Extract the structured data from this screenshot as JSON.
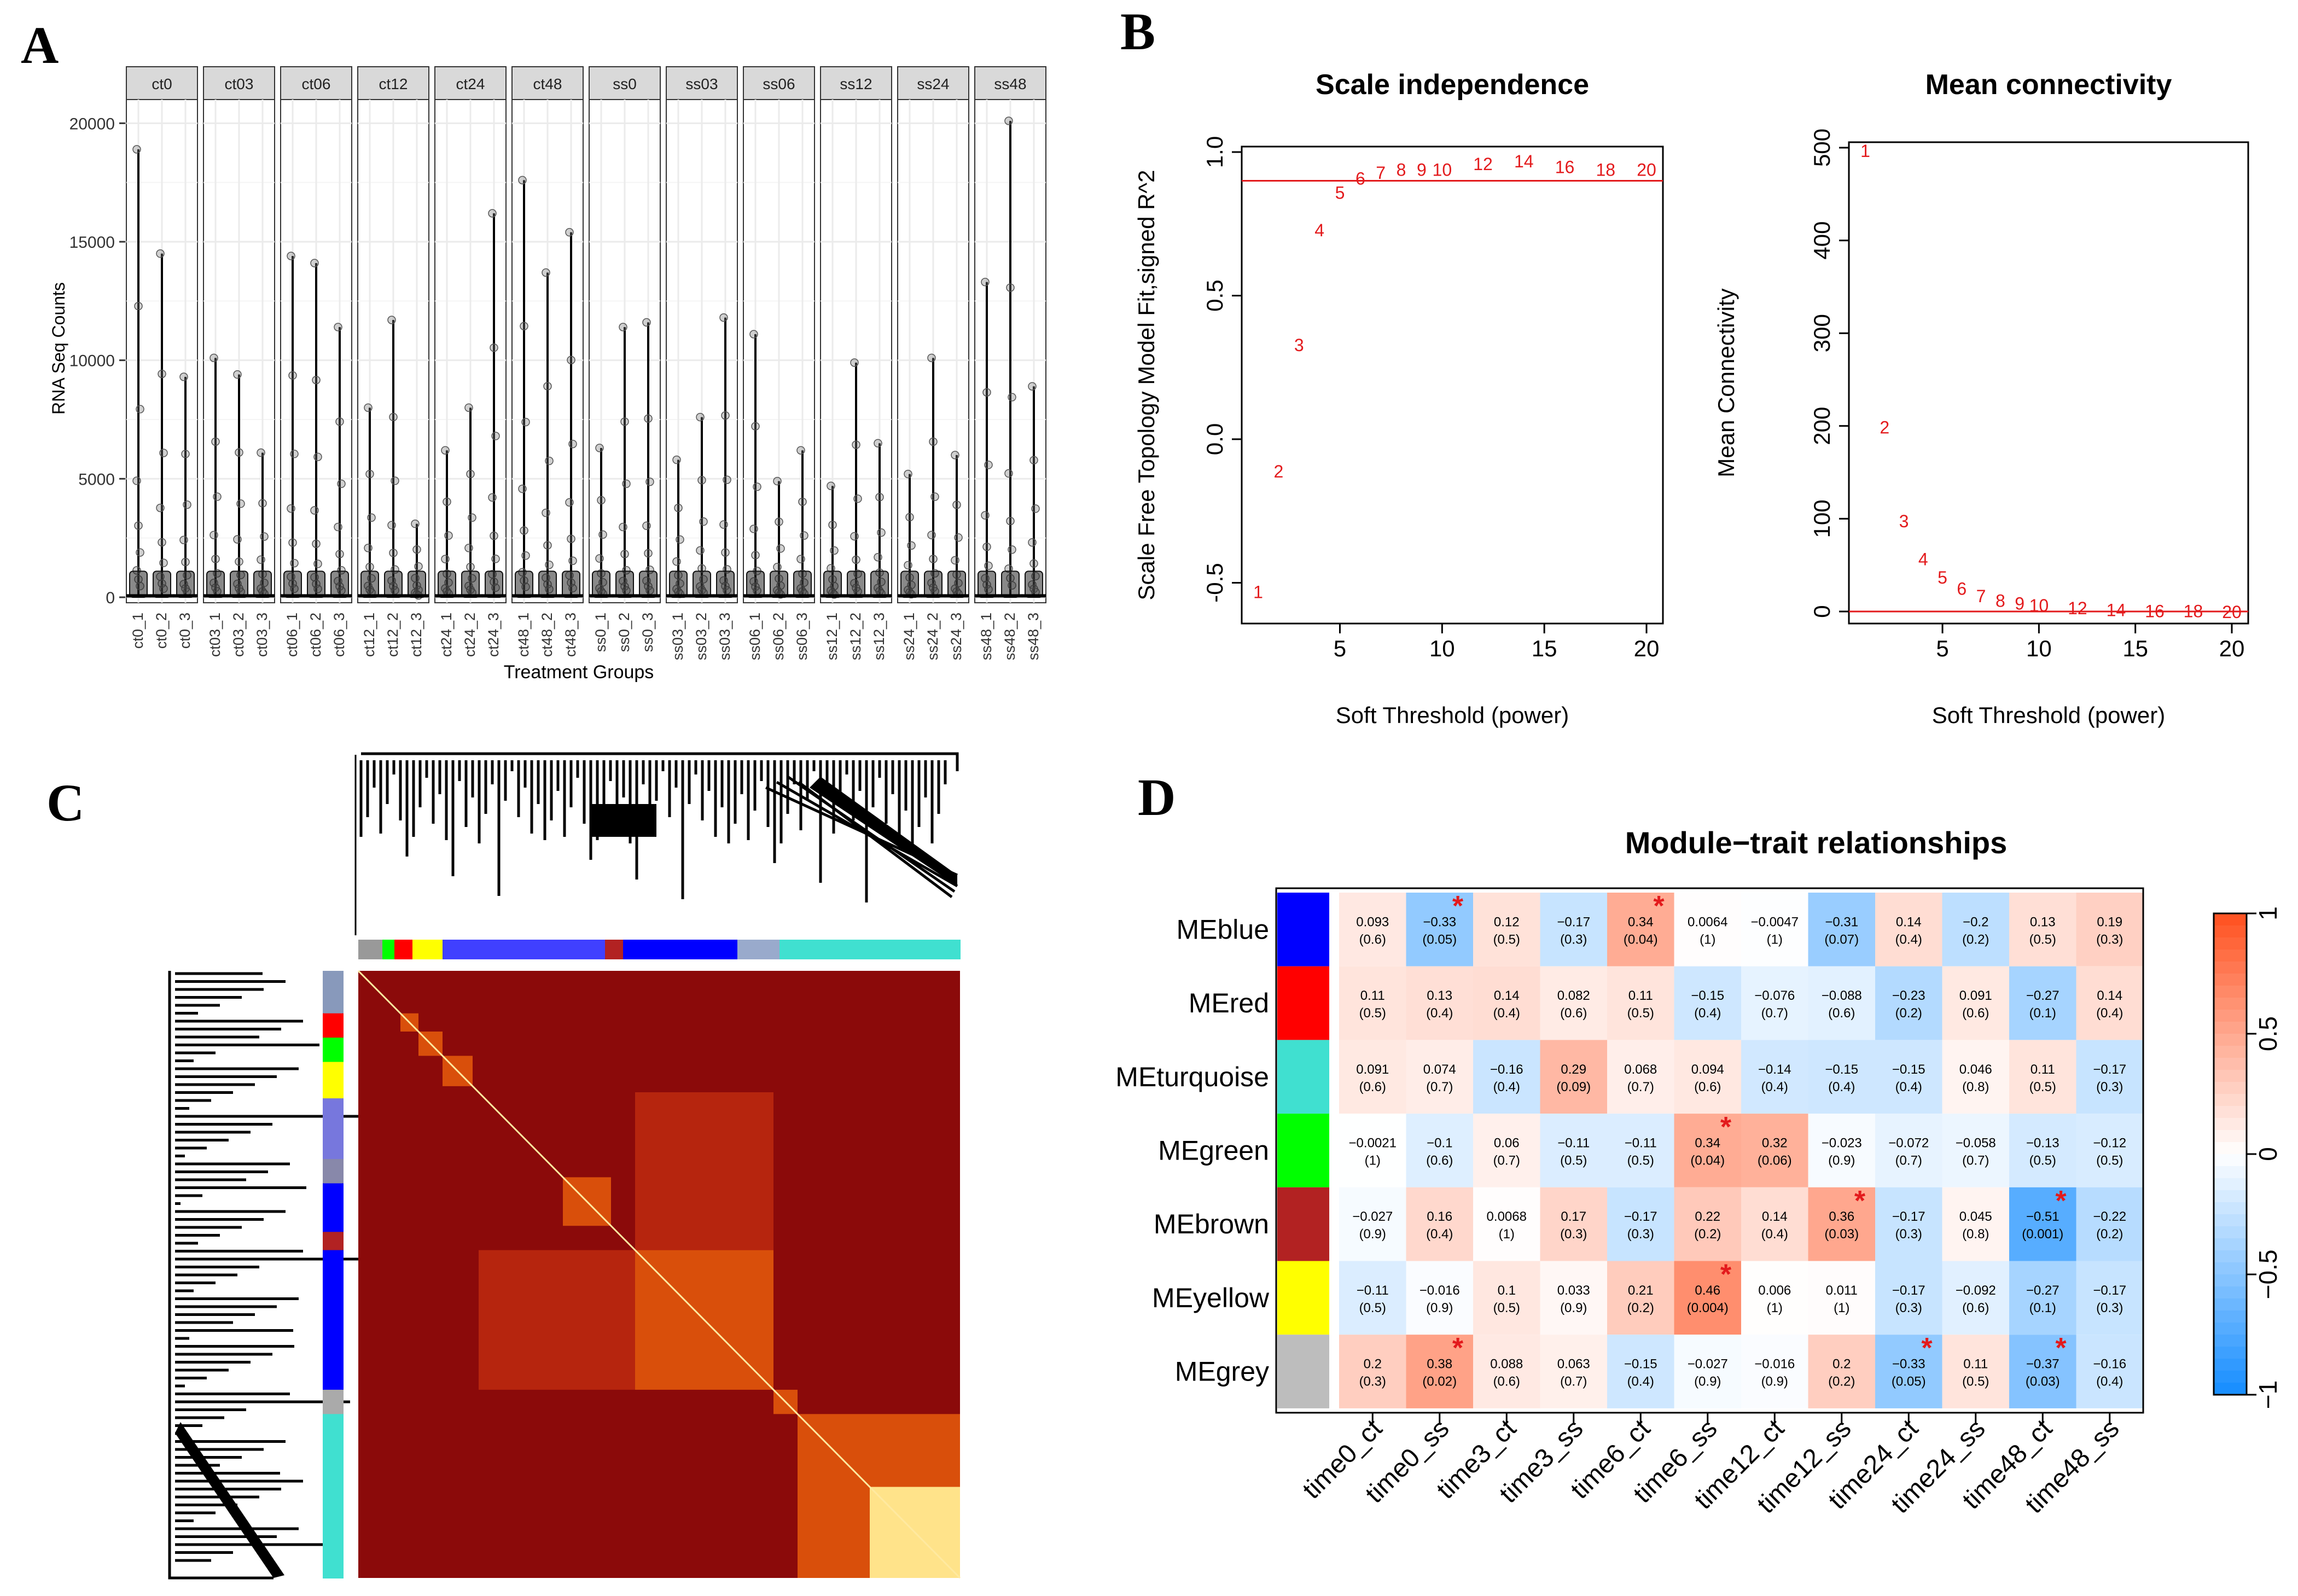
{
  "panels": {
    "a": "A",
    "b": "B",
    "c": "C",
    "d": "D"
  },
  "colors": {
    "accent": "#e31a1c",
    "dark_red": "#8b0000",
    "black": "#000000"
  },
  "chart_data": [
    {
      "id": "A",
      "type": "scatter",
      "subtype": "faceted jitter/strip plot",
      "xlabel": "Treatment Groups",
      "ylabel": "RNA Seq Counts",
      "ylim": [
        0,
        21000
      ],
      "yticks": [
        0,
        5000,
        10000,
        15000,
        20000
      ],
      "facets": [
        {
          "name": "ct0",
          "samples": [
            "ct0_1",
            "ct0_2",
            "ct0_3"
          ],
          "max": [
            18900,
            14500,
            9300
          ]
        },
        {
          "name": "ct03",
          "samples": [
            "ct03_1",
            "ct03_2",
            "ct03_3"
          ],
          "max": [
            10100,
            9400,
            6100
          ]
        },
        {
          "name": "ct06",
          "samples": [
            "ct06_1",
            "ct06_2",
            "ct06_3"
          ],
          "max": [
            14400,
            14100,
            11400
          ]
        },
        {
          "name": "ct12",
          "samples": [
            "ct12_1",
            "ct12_2",
            "ct12_3"
          ],
          "max": [
            8000,
            11700,
            3100
          ]
        },
        {
          "name": "ct24",
          "samples": [
            "ct24_1",
            "ct24_2",
            "ct24_3"
          ],
          "max": [
            6200,
            8000,
            16200
          ]
        },
        {
          "name": "ct48",
          "samples": [
            "ct48_1",
            "ct48_2",
            "ct48_3"
          ],
          "max": [
            17600,
            13700,
            15400
          ]
        },
        {
          "name": "ss0",
          "samples": [
            "ss0_1",
            "ss0_2",
            "ss0_3"
          ],
          "max": [
            6300,
            11400,
            11600
          ]
        },
        {
          "name": "ss03",
          "samples": [
            "ss03_1",
            "ss03_2",
            "ss03_3"
          ],
          "max": [
            5800,
            7600,
            11800
          ]
        },
        {
          "name": "ss06",
          "samples": [
            "ss06_1",
            "ss06_2",
            "ss06_3"
          ],
          "max": [
            11100,
            4900,
            6200
          ]
        },
        {
          "name": "ss12",
          "samples": [
            "ss12_1",
            "ss12_2",
            "ss12_3"
          ],
          "max": [
            4700,
            9900,
            6500
          ]
        },
        {
          "name": "ss24",
          "samples": [
            "ss24_1",
            "ss24_2",
            "ss24_3"
          ],
          "max": [
            5200,
            10100,
            6000
          ]
        },
        {
          "name": "ss48",
          "samples": [
            "ss48_1",
            "ss48_2",
            "ss48_3"
          ],
          "max": [
            13300,
            20100,
            8900
          ]
        }
      ]
    },
    {
      "id": "B1",
      "type": "scatter",
      "title": "Scale independence",
      "xlabel": "Soft Threshold (power)",
      "ylabel": "Scale Free Topology Model Fit,signed R^2",
      "xlim": [
        1,
        20
      ],
      "ylim": [
        -0.6,
        1.0
      ],
      "xticks": [
        5,
        10,
        15,
        20
      ],
      "yticks": [
        -0.5,
        0.0,
        0.5,
        1.0
      ],
      "ytick_labels": [
        "-0.5",
        "0.0",
        "0.5",
        "1.0"
      ],
      "hline": 0.9,
      "powers": [
        1,
        2,
        3,
        4,
        5,
        6,
        7,
        8,
        9,
        10,
        12,
        14,
        16,
        18,
        20
      ],
      "values": [
        -0.53,
        -0.11,
        0.33,
        0.73,
        0.86,
        0.91,
        0.93,
        0.94,
        0.94,
        0.94,
        0.96,
        0.97,
        0.95,
        0.94,
        0.94
      ]
    },
    {
      "id": "B2",
      "type": "scatter",
      "title": "Mean connectivity",
      "xlabel": "Soft Threshold (power)",
      "ylabel": "Mean Connectivity",
      "xlim": [
        1,
        20
      ],
      "ylim": [
        0,
        500
      ],
      "xticks": [
        5,
        10,
        15,
        20
      ],
      "yticks": [
        0,
        100,
        200,
        300,
        400,
        500
      ],
      "hline": 0,
      "powers": [
        1,
        2,
        3,
        4,
        5,
        6,
        7,
        8,
        9,
        10,
        12,
        14,
        16,
        18,
        20
      ],
      "values": [
        497,
        199,
        98,
        57,
        37,
        25,
        17,
        12,
        9,
        7,
        4,
        2,
        1,
        1,
        0
      ]
    },
    {
      "id": "C",
      "type": "heatmap",
      "subtype": "TOM heatmap with dendrograms and module color bars",
      "module_colors": [
        "#0000ff",
        "#ff0000",
        "#00ccff",
        "#00ff00",
        "#b22222",
        "#ffff00",
        "#bdbdbd",
        "#40e0d0"
      ]
    },
    {
      "id": "D",
      "type": "heatmap",
      "title": "Module−trait relationships",
      "rows": [
        "MEblue",
        "MEred",
        "MEturquoise",
        "MEgreen",
        "MEbrown",
        "MEyellow",
        "MEgrey"
      ],
      "row_colors": [
        "#0000ff",
        "#ff0000",
        "#40e0d0",
        "#00ff00",
        "#b22222",
        "#ffff00",
        "#bdbdbd"
      ],
      "cols": [
        "time0_ct",
        "time0_ss",
        "time3_ct",
        "time3_ss",
        "time6_ct",
        "time6_ss",
        "time12_ct",
        "time12_ss",
        "time24_ct",
        "time24_ss",
        "time48_ct",
        "time48_ss"
      ],
      "corr": [
        [
          "0.093",
          "−0.33",
          "0.12",
          "−0.17",
          "0.34",
          "0.0064",
          "−0.0047",
          "−0.31",
          "0.14",
          "−0.2",
          "0.13",
          "0.19"
        ],
        [
          "0.11",
          "0.13",
          "0.14",
          "0.082",
          "0.11",
          "−0.15",
          "−0.076",
          "−0.088",
          "−0.23",
          "0.091",
          "−0.27",
          "0.14"
        ],
        [
          "0.091",
          "0.074",
          "−0.16",
          "0.29",
          "0.068",
          "0.094",
          "−0.14",
          "−0.15",
          "−0.15",
          "0.046",
          "0.11",
          "−0.17"
        ],
        [
          "−0.0021",
          "−0.1",
          "0.06",
          "−0.11",
          "−0.11",
          "0.34",
          "0.32",
          "−0.023",
          "−0.072",
          "−0.058",
          "−0.13",
          "−0.12"
        ],
        [
          "−0.027",
          "0.16",
          "0.0068",
          "0.17",
          "−0.17",
          "0.22",
          "0.14",
          "0.36",
          "−0.17",
          "0.045",
          "−0.51",
          "−0.22"
        ],
        [
          "−0.11",
          "−0.016",
          "0.1",
          "0.033",
          "0.21",
          "0.46",
          "0.006",
          "0.011",
          "−0.17",
          "−0.092",
          "−0.27",
          "−0.17"
        ],
        [
          "0.2",
          "0.38",
          "0.088",
          "0.063",
          "−0.15",
          "−0.027",
          "−0.016",
          "0.2",
          "−0.33",
          "0.11",
          "−0.37",
          "−0.16"
        ]
      ],
      "pvals": [
        [
          "(0.6)",
          "(0.05)",
          "(0.5)",
          "(0.3)",
          "(0.04)",
          "(1)",
          "(1)",
          "(0.07)",
          "(0.4)",
          "(0.2)",
          "(0.5)",
          "(0.3)"
        ],
        [
          "(0.5)",
          "(0.4)",
          "(0.4)",
          "(0.6)",
          "(0.5)",
          "(0.4)",
          "(0.7)",
          "(0.6)",
          "(0.2)",
          "(0.6)",
          "(0.1)",
          "(0.4)"
        ],
        [
          "(0.6)",
          "(0.7)",
          "(0.4)",
          "(0.09)",
          "(0.7)",
          "(0.6)",
          "(0.4)",
          "(0.4)",
          "(0.4)",
          "(0.8)",
          "(0.5)",
          "(0.3)"
        ],
        [
          "(1)",
          "(0.6)",
          "(0.7)",
          "(0.5)",
          "(0.5)",
          "(0.04)",
          "(0.06)",
          "(0.9)",
          "(0.7)",
          "(0.7)",
          "(0.5)",
          "(0.5)"
        ],
        [
          "(0.9)",
          "(0.4)",
          "(1)",
          "(0.3)",
          "(0.3)",
          "(0.2)",
          "(0.4)",
          "(0.03)",
          "(0.3)",
          "(0.8)",
          "(0.001)",
          "(0.2)"
        ],
        [
          "(0.5)",
          "(0.9)",
          "(0.5)",
          "(0.9)",
          "(0.2)",
          "(0.004)",
          "(1)",
          "(1)",
          "(0.3)",
          "(0.6)",
          "(0.1)",
          "(0.3)"
        ],
        [
          "(0.3)",
          "(0.02)",
          "(0.6)",
          "(0.7)",
          "(0.4)",
          "(0.9)",
          "(0.9)",
          "(0.2)",
          "(0.05)",
          "(0.5)",
          "(0.03)",
          "(0.4)"
        ]
      ],
      "significant": [
        [
          0,
          1
        ],
        [
          0,
          4
        ],
        [
          3,
          5
        ],
        [
          4,
          7
        ],
        [
          4,
          10
        ],
        [
          5,
          5
        ],
        [
          6,
          1
        ],
        [
          6,
          8
        ],
        [
          6,
          10
        ]
      ],
      "significance_mark": "*",
      "legend_ticks": [
        "1",
        "0.5",
        "0",
        "−0.5",
        "−1"
      ],
      "legend_values": [
        1,
        0.5,
        0,
        -0.5,
        -1
      ]
    }
  ]
}
